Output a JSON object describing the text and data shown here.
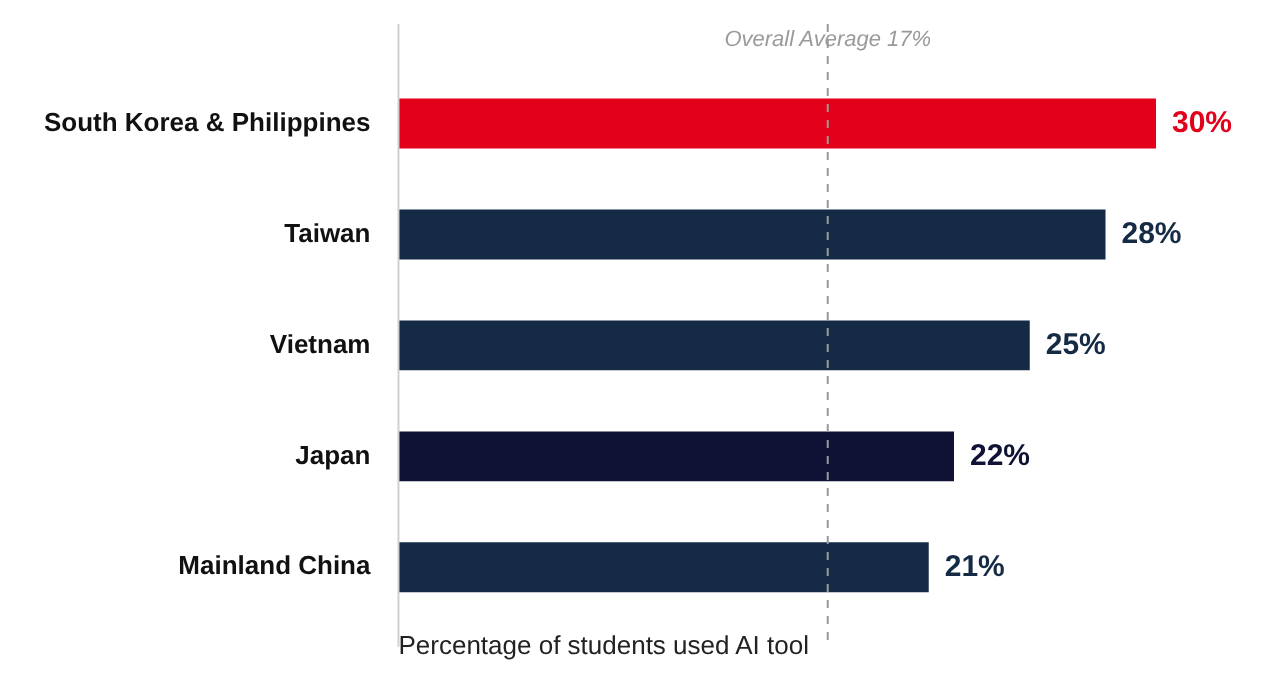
{
  "chart_data": {
    "type": "bar",
    "orientation": "horizontal",
    "xlabel": "Percentage of students used AI tool",
    "categories": [
      "South Korea & Philippines",
      "Taiwan",
      "Vietnam",
      "Japan",
      "Mainland China"
    ],
    "values": [
      30,
      28,
      25,
      22,
      21
    ],
    "colors": [
      "#e3001b",
      "#152a45",
      "#152a45",
      "#0f1235",
      "#152a45"
    ],
    "value_labels": [
      "30%",
      "28%",
      "25%",
      "22%",
      "21%"
    ],
    "xlim": [
      0,
      30
    ],
    "tick_labels": "y",
    "grid": false,
    "legend": false,
    "ref_lines": [
      {
        "axis": "x",
        "value": 17,
        "label": "Overall Average 17%",
        "color": "#9a9a9a",
        "line_style": "dashed"
      }
    ]
  }
}
